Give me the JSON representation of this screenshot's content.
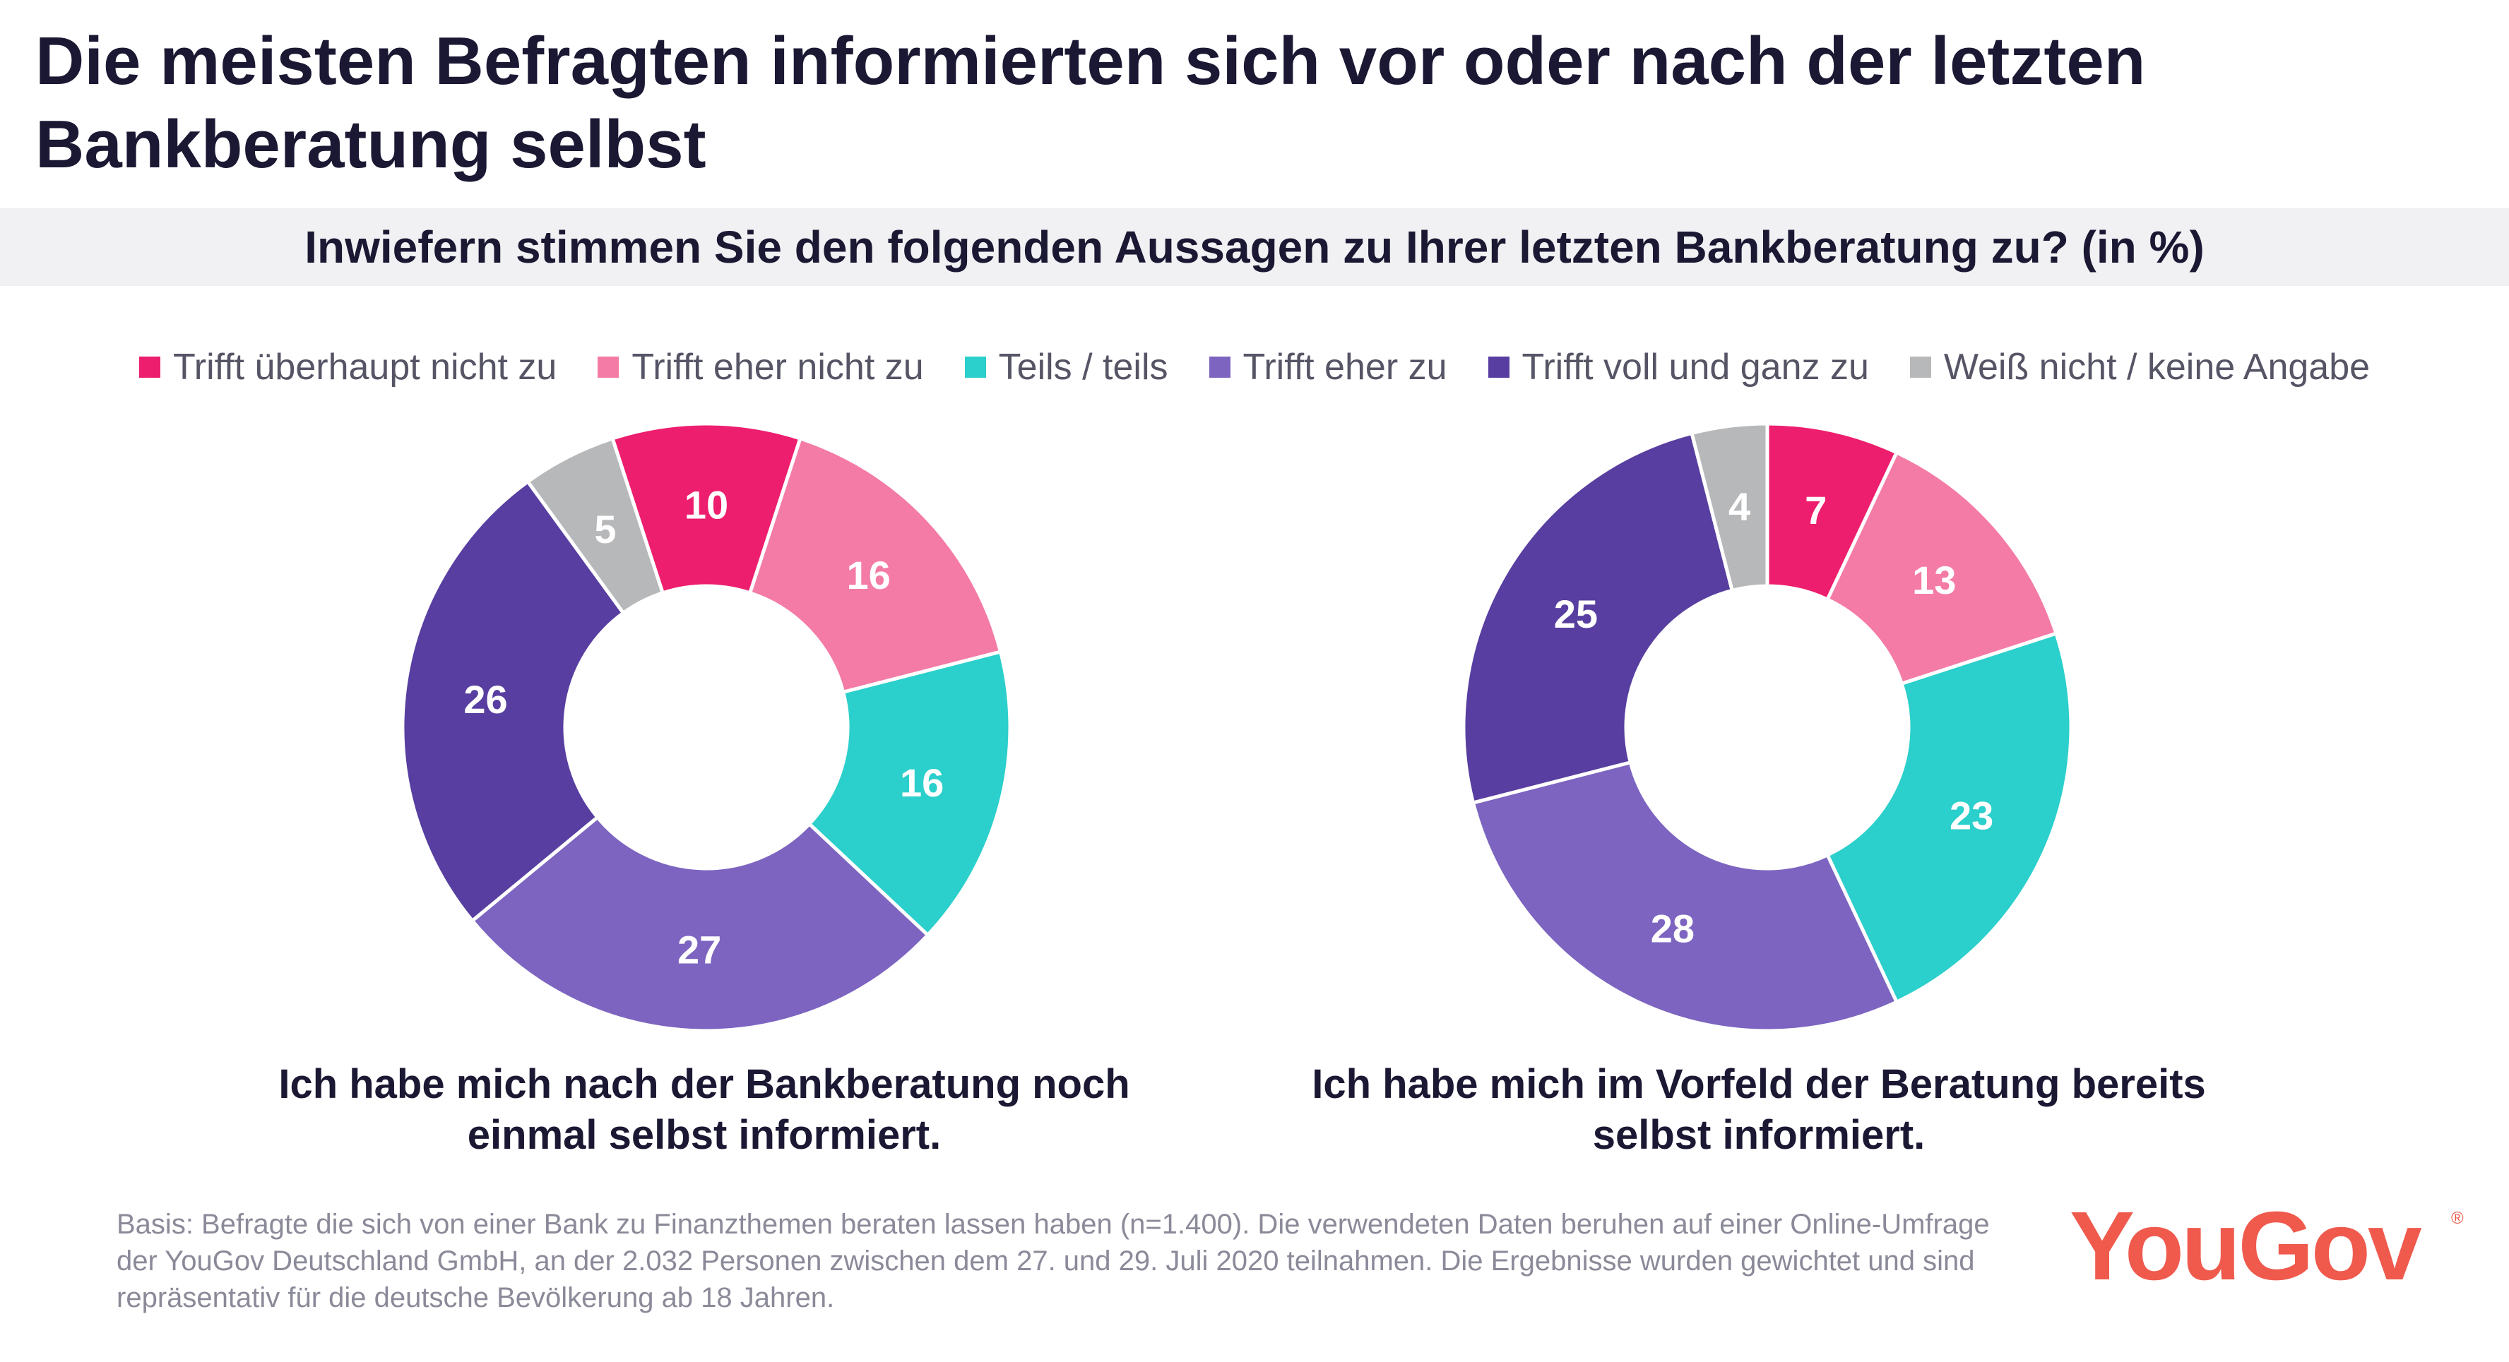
{
  "title": "Die meisten Befragten informierten sich vor oder nach der letzten Bankberatung selbst",
  "question": "Inwiefern stimmen Sie den folgenden Aussagen zu Ihrer letzten Bankberatung zu? (in %)",
  "colors": {
    "trifft_ueberhaupt_nicht_zu": "#ed1e6e",
    "trifft_eher_nicht_zu": "#f47ba6",
    "teils_teils": "#2bcfcb",
    "trifft_eher_zu": "#7c64c0",
    "trifft_voll_und_ganz_zu": "#573ea0",
    "weiss_nicht": "#b7b8b9"
  },
  "chart_data": [
    {
      "type": "pie",
      "categories": [
        "Trifft überhaupt nicht zu",
        "Trifft eher nicht zu",
        "Teils / teils",
        "Trifft eher zu",
        "Trifft voll und ganz zu",
        "Weiß nicht / keine Angabe"
      ],
      "values": [
        10,
        16,
        16,
        27,
        26,
        5
      ],
      "caption": "Ich habe mich nach der Bankberatung noch einmal selbst informiert.",
      "legend": "top"
    },
    {
      "type": "pie",
      "categories": [
        "Trifft überhaupt nicht zu",
        "Trifft eher nicht zu",
        "Teils / teils",
        "Trifft eher zu",
        "Trifft voll und ganz zu",
        "Weiß nicht / keine Angabe"
      ],
      "values": [
        7,
        13,
        23,
        28,
        25,
        4
      ],
      "caption": "Ich habe mich im Vorfeld der Beratung bereits selbst informiert.",
      "legend": "top"
    }
  ],
  "legend": {
    "items": [
      {
        "label": "Trifft überhaupt nicht zu",
        "color": "#ed1e6e"
      },
      {
        "label": "Trifft eher nicht zu",
        "color": "#f47ba6"
      },
      {
        "label": "Teils / teils",
        "color": "#2bcfcb"
      },
      {
        "label": "Trifft eher zu",
        "color": "#7c64c0"
      },
      {
        "label": "Trifft voll und ganz zu",
        "color": "#573ea0"
      },
      {
        "label": "Weiß nicht / keine Angabe",
        "color": "#b7b8b9"
      }
    ]
  },
  "footnote": "Basis: Befragte die sich von einer Bank zu Finanzthemen beraten lassen haben (n=1.400). Die verwendeten Daten beruhen auf einer Online-Umfrage der YouGov Deutschland GmbH, an der 2.032 Personen zwischen dem 27. und 29. Juli 2020 teilnahmen. Die Ergebnisse wurden gewichtet und sind repräsentativ für die deutsche Bevölkerung ab 18 Jahren.",
  "logo": {
    "text": "YouGov",
    "reg": "®"
  }
}
